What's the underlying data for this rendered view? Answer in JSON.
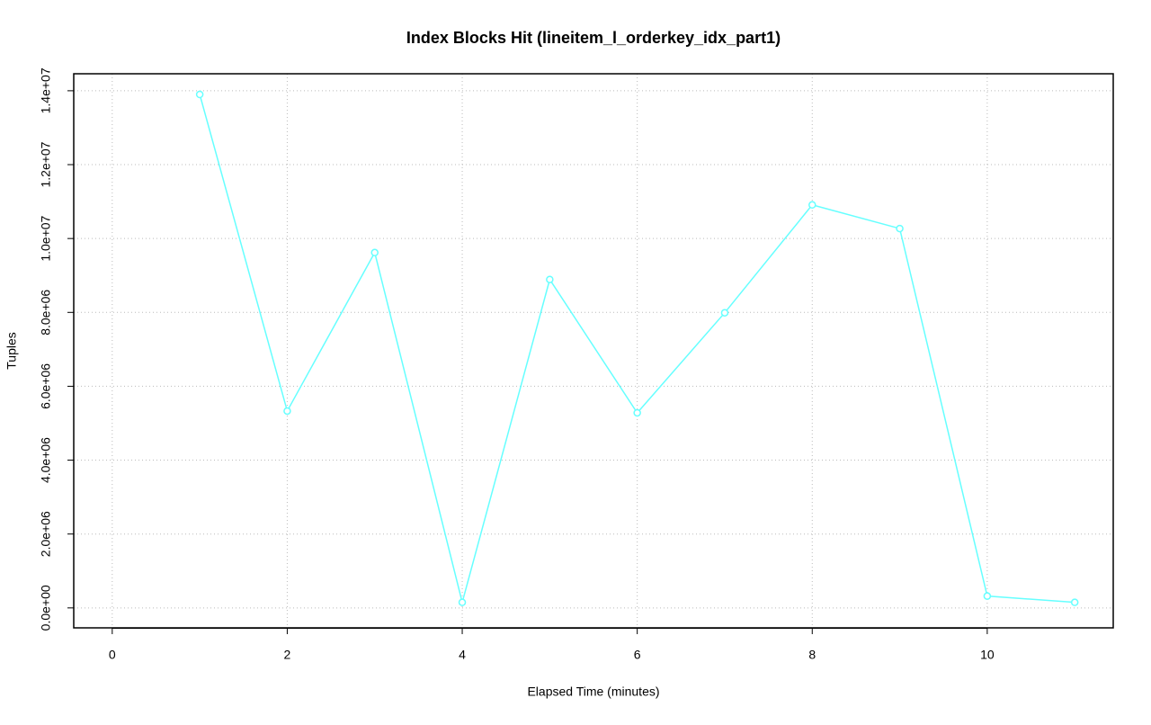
{
  "chart_data": {
    "type": "line",
    "title": "Index Blocks Hit (lineitem_l_orderkey_idx_part1)",
    "x_label": "Elapsed Time (minutes)",
    "y_label": "Tuples",
    "x": [
      1,
      2,
      3,
      4,
      5,
      6,
      7,
      8,
      9,
      10,
      11
    ],
    "values": [
      13900000,
      5330000,
      9620000,
      150000,
      8890000,
      5280000,
      7990000,
      10910000,
      10270000,
      320000,
      150000
    ],
    "color": "#66ffff",
    "xlim": [
      -0.44,
      11.44
    ],
    "xticks": [
      0,
      2,
      4,
      6,
      8,
      10
    ],
    "ylim": [
      -540000,
      14460000
    ],
    "yticks": [
      {
        "value": 0,
        "label": "0.0e+00"
      },
      {
        "value": 2000000,
        "label": "2.0e+06"
      },
      {
        "value": 4000000,
        "label": "4.0e+06"
      },
      {
        "value": 6000000,
        "label": "6.0e+06"
      },
      {
        "value": 8000000,
        "label": "8.0e+06"
      },
      {
        "value": 10000000,
        "label": "1.0e+07"
      },
      {
        "value": 12000000,
        "label": "1.2e+07"
      },
      {
        "value": 14000000,
        "label": "1.4e+07"
      }
    ],
    "grid": true
  }
}
